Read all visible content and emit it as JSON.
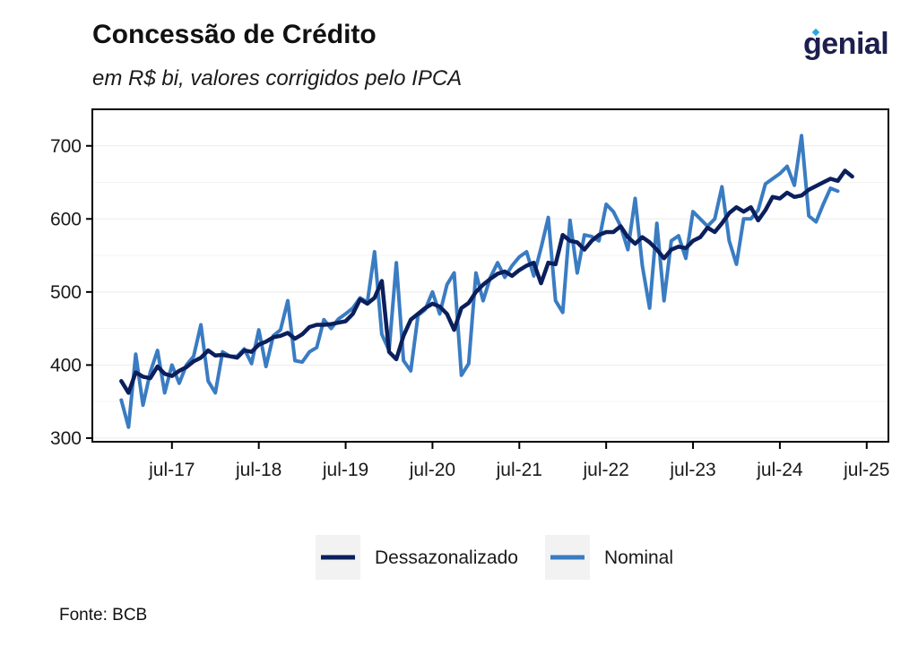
{
  "header": {
    "title": "Concessão de Crédito",
    "subtitle": "em R$ bi, valores corrigidos pelo IPCA",
    "logo_text": "genial"
  },
  "footer": {
    "source": "Fonte: BCB"
  },
  "colors": {
    "dessazonalizado": "#0b1f5c",
    "nominal": "#3a7cc2"
  },
  "chart_data": {
    "type": "line",
    "title": "Concessão de Crédito",
    "subtitle": "em R$ bi, valores corrigidos pelo IPCA",
    "xlabel": "",
    "ylabel": "",
    "ylim": [
      295,
      750
    ],
    "xlim": [
      "2016-08",
      "2025-10"
    ],
    "y_ticks": [
      300,
      400,
      500,
      600,
      700
    ],
    "x_ticks": [
      "jul-17",
      "jul-18",
      "jul-19",
      "jul-20",
      "jul-21",
      "jul-22",
      "jul-23",
      "jul-24",
      "jul-25"
    ],
    "x_tick_dates": [
      "2017-07",
      "2018-07",
      "2019-07",
      "2020-07",
      "2021-07",
      "2022-07",
      "2023-07",
      "2024-07",
      "2025-07"
    ],
    "grid": true,
    "legend_position": "bottom",
    "start_date": "2016-12",
    "series": [
      {
        "name": "Dessazonalizado",
        "values": [
          378,
          362,
          390,
          384,
          382,
          398,
          388,
          385,
          392,
          397,
          405,
          410,
          420,
          413,
          414,
          412,
          410,
          420,
          418,
          428,
          432,
          438,
          440,
          444,
          436,
          442,
          452,
          455,
          455,
          456,
          458,
          460,
          470,
          490,
          484,
          492,
          515,
          418,
          408,
          440,
          462,
          470,
          478,
          484,
          480,
          470,
          448,
          478,
          485,
          500,
          510,
          518,
          525,
          528,
          522,
          530,
          536,
          540,
          512,
          540,
          538,
          578,
          570,
          568,
          558,
          570,
          578,
          582,
          582,
          590,
          575,
          566,
          575,
          568,
          558,
          546,
          558,
          562,
          560,
          570,
          575,
          588,
          582,
          594,
          608,
          616,
          610,
          616,
          598,
          612,
          630,
          628,
          636,
          630,
          632,
          640,
          645,
          650,
          655,
          652,
          666,
          658
        ]
      },
      {
        "name": "Nominal",
        "values": [
          352,
          315,
          415,
          345,
          390,
          420,
          362,
          400,
          375,
          400,
          412,
          455,
          378,
          362,
          418,
          412,
          412,
          422,
          402,
          448,
          398,
          440,
          448,
          488,
          406,
          404,
          418,
          424,
          462,
          450,
          463,
          470,
          478,
          492,
          486,
          555,
          442,
          420,
          540,
          406,
          392,
          468,
          476,
          500,
          470,
          510,
          526,
          386,
          402,
          526,
          488,
          520,
          540,
          520,
          536,
          548,
          555,
          522,
          560,
          602,
          488,
          472,
          598,
          526,
          578,
          576,
          570,
          620,
          610,
          590,
          558,
          628,
          536,
          478,
          594,
          488,
          570,
          577,
          546,
          610,
          600,
          590,
          600,
          644,
          570,
          538,
          600,
          600,
          612,
          648,
          655,
          662,
          672,
          646,
          714,
          604,
          596,
          620,
          642,
          638
        ]
      }
    ]
  }
}
